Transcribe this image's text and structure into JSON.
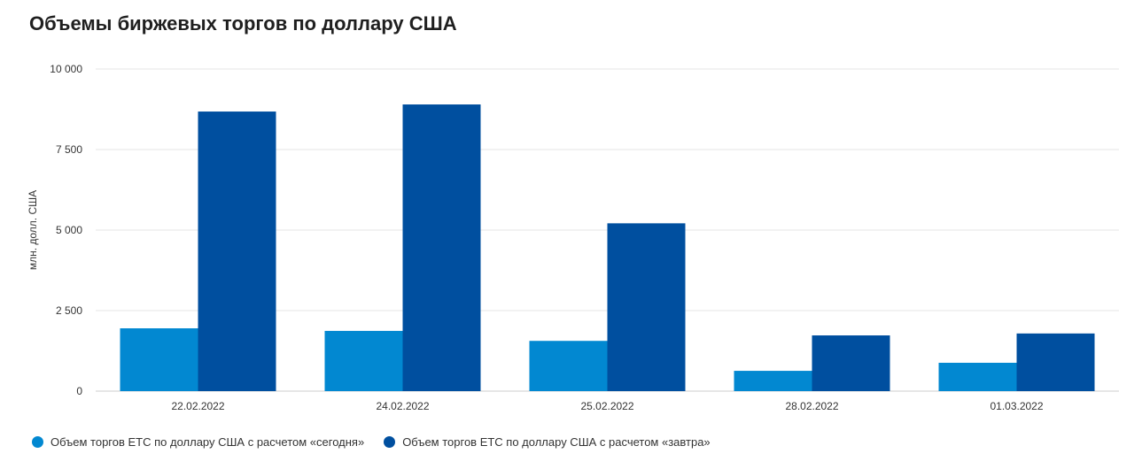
{
  "chart_data": {
    "type": "bar",
    "title": "Объемы биржевых торгов по доллару США",
    "ylabel": "млн. долл. США",
    "xlabel": "",
    "categories": [
      "22.02.2022",
      "24.02.2022",
      "25.02.2022",
      "28.02.2022",
      "01.03.2022"
    ],
    "series": [
      {
        "name": "Объем торгов ЕТС по доллару США с расчетом «сегодня»",
        "color": "#0288d1",
        "values": [
          1950,
          1870,
          1560,
          630,
          880
        ]
      },
      {
        "name": "Объем торгов ЕТС по доллару США с расчетом «завтра»",
        "color": "#004f9f",
        "values": [
          8680,
          8900,
          5210,
          1730,
          1790
        ]
      }
    ],
    "ylim": [
      0,
      10000
    ],
    "yticks": [
      0,
      2500,
      5000,
      7500,
      10000
    ],
    "ytick_labels": [
      "0",
      "2 500",
      "5 000",
      "7 500",
      "10 000"
    ],
    "grid": true,
    "legend_position": "bottom-left"
  }
}
